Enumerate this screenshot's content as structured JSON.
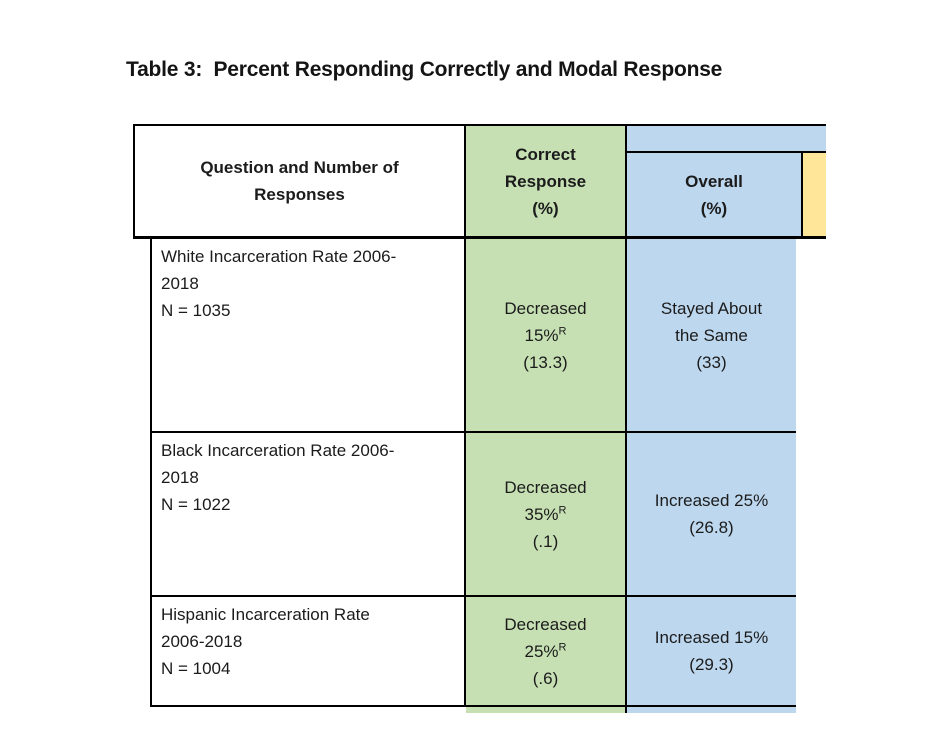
{
  "title": "Table 3:  Percent Responding Correctly and Modal Response",
  "colors": {
    "header_green": "#C6E0B4",
    "header_blue": "#BDD7EE",
    "header_yellow": "#FFE699",
    "border": "#000000",
    "text": "#1b1b1b"
  },
  "table": {
    "header": {
      "question": [
        "Question and Number of",
        "Responses"
      ],
      "correct": [
        "Correct",
        "Response",
        "(%)"
      ],
      "overall": [
        "Overall",
        "(%)"
      ]
    },
    "rows": [
      {
        "question": [
          "White Incarceration Rate 2006-",
          "2018",
          "N = 1035"
        ],
        "correct_line1": "Decreased",
        "correct_line2": "15%",
        "correct_sup": "R",
        "correct_line3": "(13.3)",
        "overall": [
          "Stayed About",
          "the Same",
          "(33)"
        ]
      },
      {
        "question": [
          "Black Incarceration Rate 2006-",
          "2018",
          "N = 1022"
        ],
        "correct_line1": "Decreased",
        "correct_line2": "35%",
        "correct_sup": "R",
        "correct_line3": "(.1)",
        "overall": [
          "Increased 25%",
          "(26.8)"
        ]
      },
      {
        "question": [
          "Hispanic Incarceration Rate",
          "2006-2018",
          "N = 1004"
        ],
        "correct_line1": "Decreased",
        "correct_line2": "25%",
        "correct_sup": "R",
        "correct_line3": "(.6)",
        "overall": [
          "Increased 15%",
          "(29.3)"
        ]
      }
    ]
  }
}
